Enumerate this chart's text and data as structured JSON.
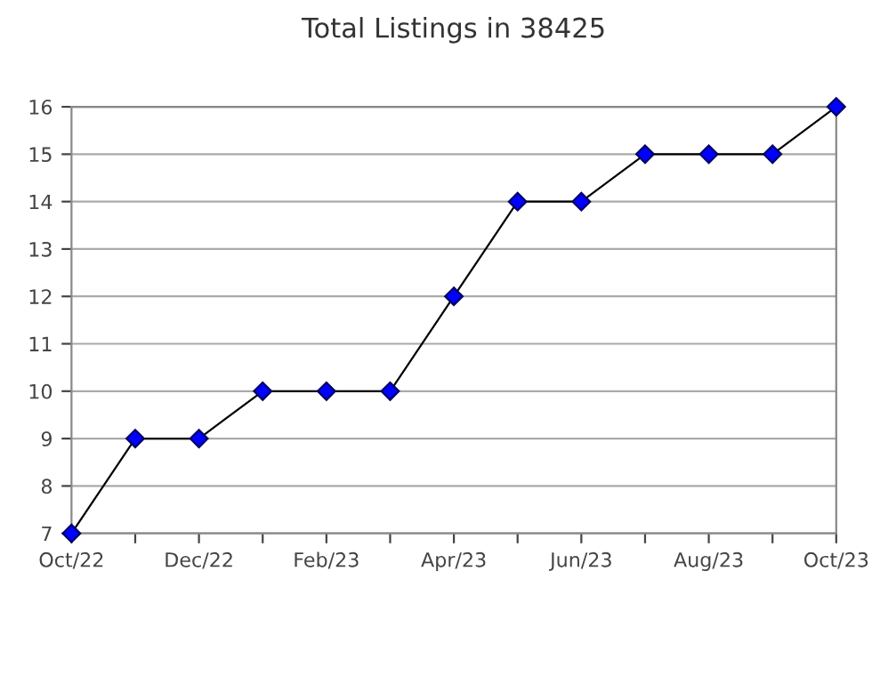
{
  "chart_data": {
    "type": "line",
    "title": "Total Listings in 38425",
    "categories": [
      "Oct/22",
      null,
      "Dec/22",
      null,
      "Feb/23",
      null,
      "Apr/23",
      null,
      "Jun/23",
      null,
      "Aug/23",
      null,
      "Oct/23"
    ],
    "series": [
      {
        "color": "#0000ff",
        "values": [
          7,
          9,
          9,
          10,
          10,
          10,
          12,
          14,
          14,
          15,
          15,
          15,
          16
        ]
      }
    ],
    "ylim": [
      7,
      16
    ],
    "yticks": [
      7,
      8,
      9,
      10,
      11,
      12,
      13,
      14,
      15,
      16
    ],
    "grid": "y",
    "marker": "diamond",
    "line_style": "solid"
  }
}
